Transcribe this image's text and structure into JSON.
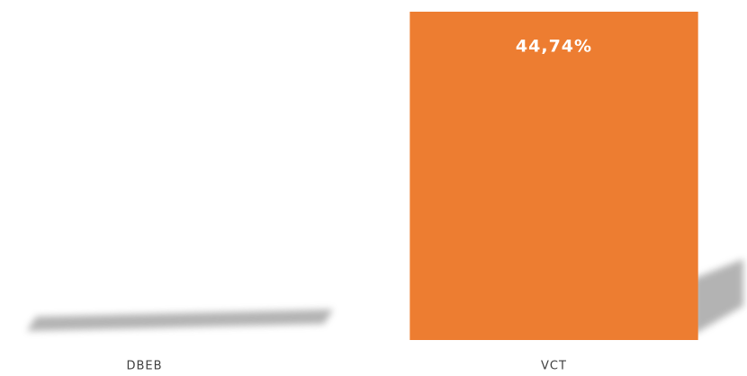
{
  "chart_data": {
    "type": "bar",
    "categories": [
      "DBEB",
      "VCT"
    ],
    "values": [
      0,
      44.74
    ],
    "value_labels": [
      null,
      "44,74%"
    ],
    "color": "#ed7d31"
  }
}
